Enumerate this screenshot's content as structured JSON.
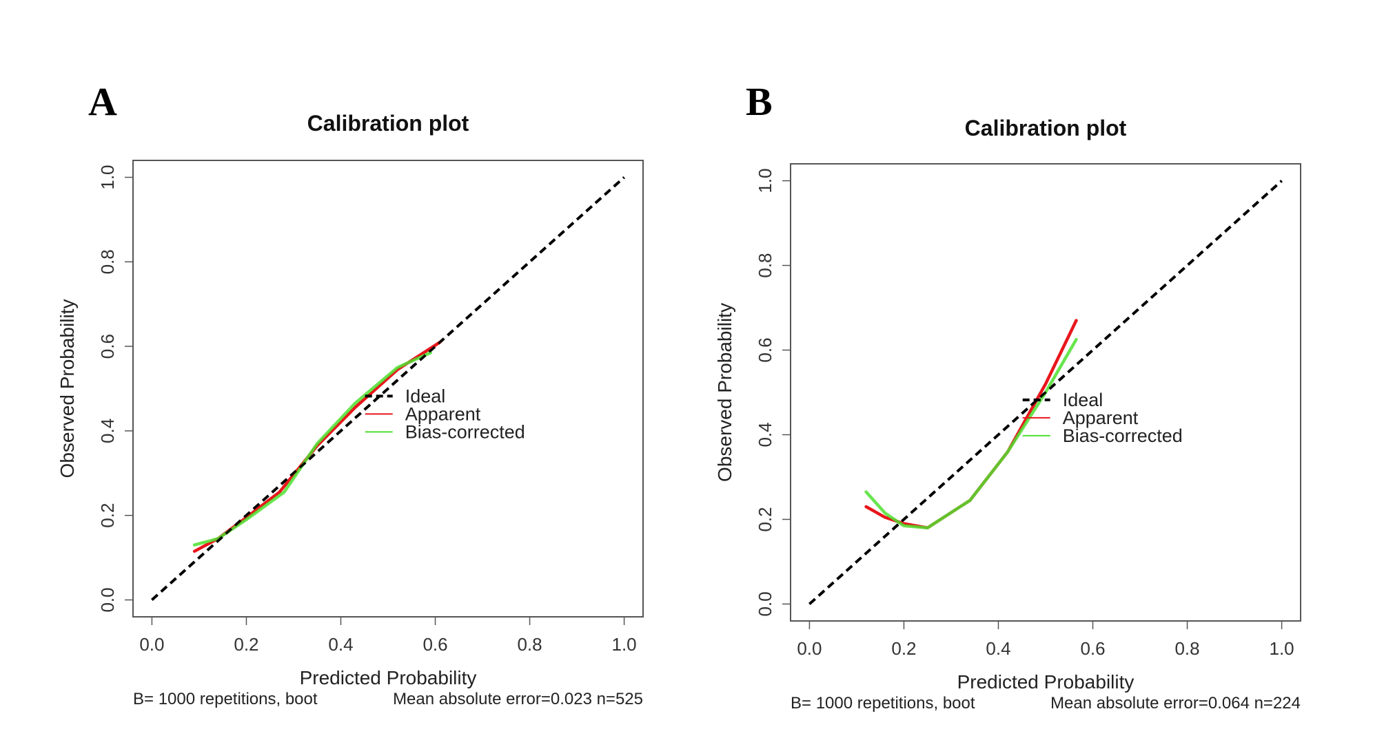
{
  "chart_data": [
    {
      "type": "line",
      "panel_label": "A",
      "title": "Calibration plot",
      "xlabel": "Predicted Probability",
      "ylabel": "Observed Probability",
      "xlim": [
        0.0,
        1.0
      ],
      "ylim": [
        0.0,
        1.0
      ],
      "xticks": [
        "0.0",
        "0.2",
        "0.4",
        "0.6",
        "0.8",
        "1.0"
      ],
      "yticks": [
        "0.0",
        "0.2",
        "0.4",
        "0.6",
        "0.8",
        "1.0"
      ],
      "subtitle_left": "B= 1000 repetitions, boot",
      "subtitle_right": "Mean absolute error=0.023 n=525",
      "legend_position": "right",
      "series": [
        {
          "name": "Ideal",
          "style": "dashed",
          "color": "#000000",
          "x": [
            0.0,
            1.0
          ],
          "y": [
            0.0,
            1.0
          ]
        },
        {
          "name": "Apparent",
          "style": "solid",
          "color": "#e8161b",
          "x": [
            0.09,
            0.14,
            0.2,
            0.27,
            0.35,
            0.43,
            0.52,
            0.61
          ],
          "y": [
            0.115,
            0.145,
            0.195,
            0.255,
            0.365,
            0.455,
            0.545,
            0.61
          ]
        },
        {
          "name": "Bias-corrected",
          "style": "solid",
          "color": "#4ee02f",
          "x": [
            0.09,
            0.14,
            0.2,
            0.28,
            0.35,
            0.43,
            0.52,
            0.59
          ],
          "y": [
            0.13,
            0.145,
            0.19,
            0.255,
            0.37,
            0.465,
            0.55,
            0.585
          ]
        }
      ]
    },
    {
      "type": "line",
      "panel_label": "B",
      "title": "Calibration plot",
      "xlabel": "Predicted Probability",
      "ylabel": "Observed Probability",
      "xlim": [
        0.0,
        1.0
      ],
      "ylim": [
        0.0,
        1.0
      ],
      "xticks": [
        "0.0",
        "0.2",
        "0.4",
        "0.6",
        "0.8",
        "1.0"
      ],
      "yticks": [
        "0.0",
        "0.2",
        "0.4",
        "0.6",
        "0.8",
        "1.0"
      ],
      "subtitle_left": "B= 1000 repetitions, boot",
      "subtitle_right": "Mean absolute error=0.064 n=224",
      "legend_position": "right",
      "series": [
        {
          "name": "Ideal",
          "style": "dashed",
          "color": "#000000",
          "x": [
            0.0,
            1.0
          ],
          "y": [
            0.0,
            1.0
          ]
        },
        {
          "name": "Apparent",
          "style": "solid",
          "color": "#e8161b",
          "x": [
            0.12,
            0.16,
            0.2,
            0.25,
            0.34,
            0.42,
            0.5,
            0.565
          ],
          "y": [
            0.23,
            0.205,
            0.19,
            0.18,
            0.245,
            0.36,
            0.52,
            0.67
          ]
        },
        {
          "name": "Bias-corrected",
          "style": "solid",
          "color": "#4ee02f",
          "x": [
            0.12,
            0.16,
            0.2,
            0.25,
            0.34,
            0.42,
            0.5,
            0.565
          ],
          "y": [
            0.265,
            0.215,
            0.185,
            0.18,
            0.245,
            0.36,
            0.5,
            0.625
          ]
        }
      ]
    }
  ]
}
